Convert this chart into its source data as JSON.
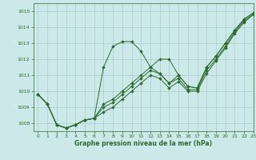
{
  "xlabel": "Graphe pression niveau de la mer (hPa)",
  "background_color": "#cce8e8",
  "grid_color": "#a8cccc",
  "line_color": "#2d6a2d",
  "xlim": [
    -0.5,
    23
  ],
  "ylim": [
    1007.5,
    1015.5
  ],
  "yticks": [
    1008,
    1009,
    1010,
    1011,
    1012,
    1013,
    1014,
    1015
  ],
  "xticks": [
    0,
    1,
    2,
    3,
    4,
    5,
    6,
    7,
    8,
    9,
    10,
    11,
    12,
    13,
    14,
    15,
    16,
    17,
    18,
    19,
    20,
    21,
    22,
    23
  ],
  "series": [
    [
      1009.8,
      1009.2,
      1007.9,
      1007.7,
      1007.9,
      1008.2,
      1008.3,
      1011.5,
      1012.8,
      1013.1,
      1013.1,
      1012.5,
      1011.5,
      1011.1,
      1010.5,
      1011.0,
      1010.3,
      1010.2,
      1011.5,
      1012.2,
      1013.0,
      1013.8,
      1014.5,
      1014.9
    ],
    [
      1009.8,
      1009.2,
      1007.9,
      1007.7,
      1007.9,
      1008.2,
      1008.3,
      1009.2,
      1009.5,
      1010.0,
      1010.5,
      1011.0,
      1011.5,
      1012.0,
      1012.0,
      1011.0,
      1010.3,
      1010.2,
      1011.5,
      1012.2,
      1013.0,
      1013.8,
      1014.5,
      1014.9
    ],
    [
      1009.8,
      1009.2,
      1007.9,
      1007.7,
      1007.9,
      1008.2,
      1008.3,
      1009.0,
      1009.3,
      1009.8,
      1010.3,
      1010.8,
      1011.3,
      1011.1,
      1010.5,
      1010.8,
      1010.1,
      1010.1,
      1011.3,
      1012.0,
      1012.8,
      1013.7,
      1014.4,
      1014.8
    ],
    [
      1009.8,
      1009.2,
      1007.9,
      1007.7,
      1007.9,
      1008.2,
      1008.3,
      1008.7,
      1009.0,
      1009.5,
      1010.0,
      1010.5,
      1011.0,
      1010.8,
      1010.2,
      1010.6,
      1010.0,
      1010.0,
      1011.1,
      1011.9,
      1012.7,
      1013.6,
      1014.3,
      1014.8
    ]
  ]
}
